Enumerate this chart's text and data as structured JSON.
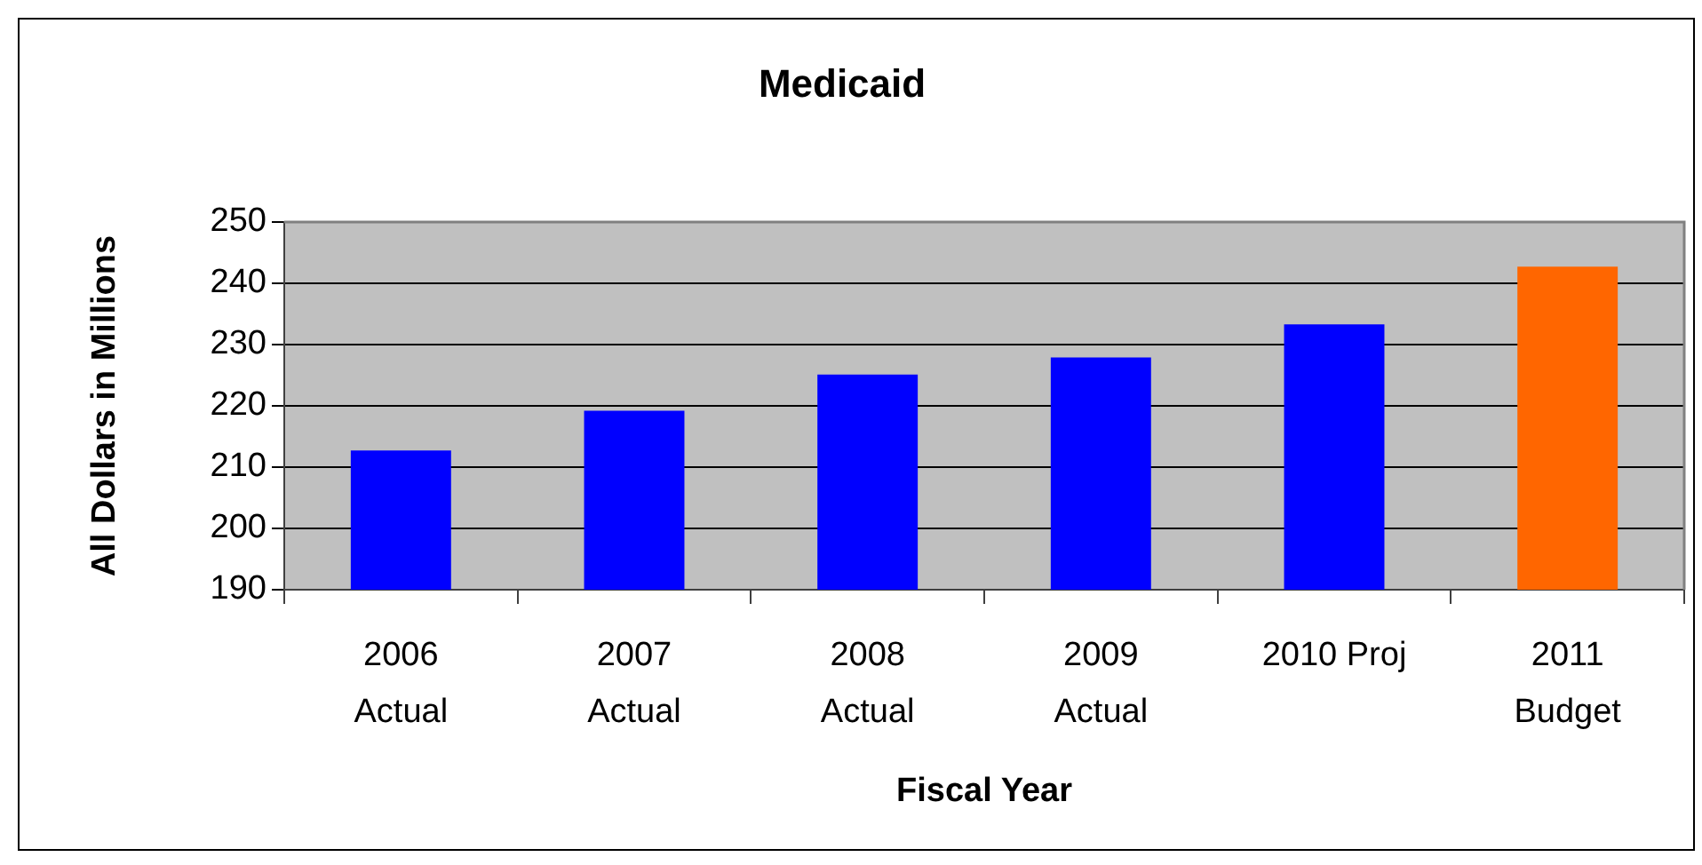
{
  "chart_data": {
    "type": "bar",
    "title": "Medicaid",
    "xlabel": "Fiscal Year",
    "ylabel": "All Dollars in Millions",
    "categories": [
      "2006 Actual",
      "2007 Actual",
      "2008 Actual",
      "2009 Actual",
      "2010 Proj",
      "2011 Budget"
    ],
    "values": [
      212.7,
      219.2,
      225.1,
      227.9,
      233.3,
      242.7
    ],
    "colors": [
      "#0000ff",
      "#0000ff",
      "#0000ff",
      "#0000ff",
      "#0000ff",
      "#ff6600"
    ],
    "ylim": [
      190,
      250
    ],
    "yticks": [
      190,
      200,
      210,
      220,
      230,
      240,
      250
    ],
    "grid": "y"
  }
}
